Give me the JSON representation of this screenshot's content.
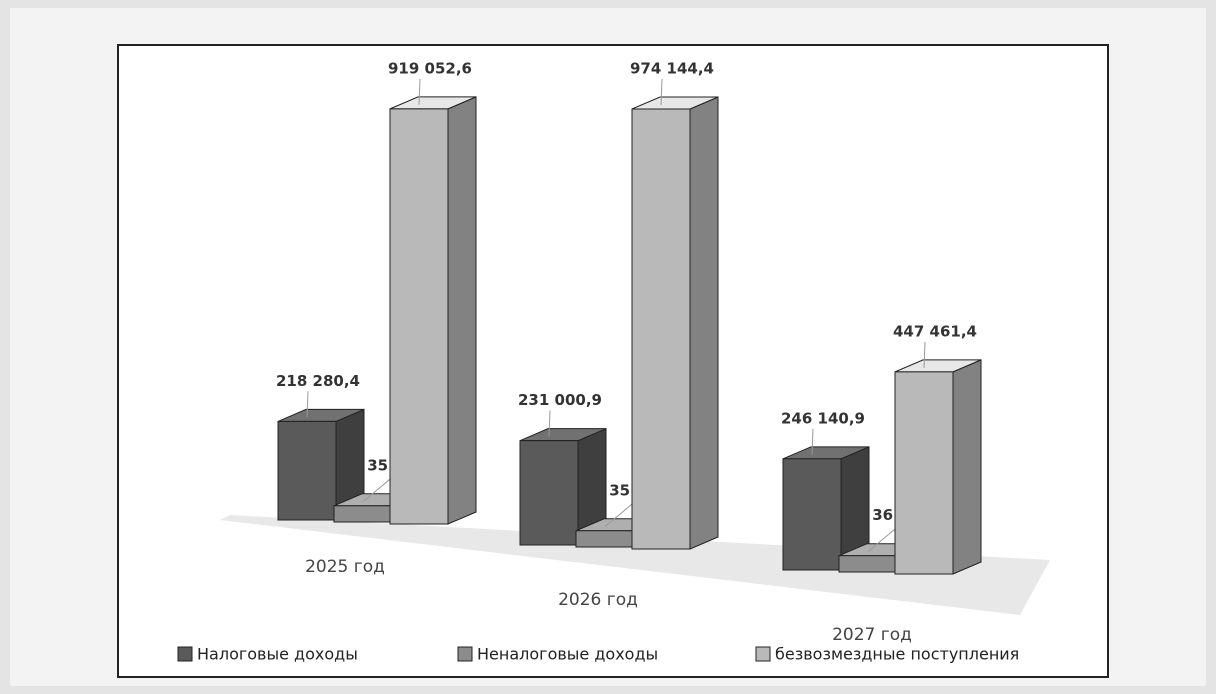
{
  "chart_data": {
    "type": "bar3d",
    "categories": [
      "2025 год",
      "2026 год",
      "2027 год"
    ],
    "series": [
      {
        "name": "Налоговые доходы",
        "color": "#5a5a5a",
        "values": [
          218280.4,
          231000.9,
          246140.9
        ],
        "value_labels": [
          "218 280,4",
          "231 000,9",
          "246 140,9"
        ]
      },
      {
        "name": "Неналоговые доходы",
        "color": "#8c8c8c",
        "values": [
          35847.9,
          35971.3,
          36099.8
        ],
        "value_labels": [
          "35 847,9",
          "35 971,3",
          "36 099,8"
        ]
      },
      {
        "name": "безвозмездные поступления",
        "color": "#b9b9b9",
        "values": [
          919052.6,
          974144.4,
          447461.4
        ],
        "value_labels": [
          "919 052,6",
          "974 144,4",
          "447 461,4"
        ]
      }
    ],
    "legend": "bottom"
  }
}
